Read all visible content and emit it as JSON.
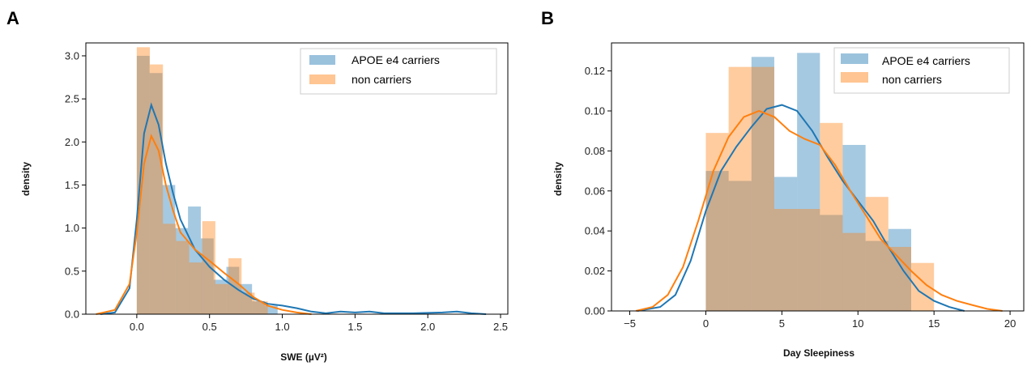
{
  "colors": {
    "carriers": "#1f77b4",
    "non_carriers": "#ff7f0e"
  },
  "chart_data": [
    {
      "panel_label": "A",
      "type": "histogram-kde",
      "xlabel": "SWE (µV²)",
      "ylabel": "density",
      "xlim": [
        -0.35,
        2.55
      ],
      "ylim": [
        0,
        3.15
      ],
      "xticks": [
        {
          "v": 0,
          "label": "0.0"
        },
        {
          "v": 0.5,
          "label": "0.5"
        },
        {
          "v": 1,
          "label": "1.0"
        },
        {
          "v": 1.5,
          "label": "1.5"
        },
        {
          "v": 2,
          "label": "2.0"
        },
        {
          "v": 2.5,
          "label": "2.5"
        }
      ],
      "yticks": [
        {
          "v": 0,
          "label": "0.0"
        },
        {
          "v": 0.5,
          "label": "0.5"
        },
        {
          "v": 1,
          "label": "1.0"
        },
        {
          "v": 1.5,
          "label": "1.5"
        },
        {
          "v": 2,
          "label": "2.0"
        },
        {
          "v": 2.5,
          "label": "2.5"
        },
        {
          "v": 3,
          "label": "3.0"
        }
      ],
      "legend_position": "top-right",
      "legend": [
        "APOE e4 carriers",
        "non carriers"
      ],
      "series": [
        {
          "name": "APOE e4 carriers",
          "color": "#1f77b4",
          "bin_edges": [
            0,
            0.088,
            0.176,
            0.264,
            0.352,
            0.44,
            0.528,
            0.616,
            0.704,
            0.792,
            0.88,
            0.968
          ],
          "bin_heights": [
            3.0,
            2.8,
            1.5,
            1.0,
            1.25,
            0.88,
            0.4,
            0.55,
            0.35,
            0.15,
            0.1
          ],
          "kde": [
            [
              -0.25,
              0
            ],
            [
              -0.15,
              0.02
            ],
            [
              -0.05,
              0.3
            ],
            [
              0,
              1.1
            ],
            [
              0.05,
              2.1
            ],
            [
              0.1,
              2.43
            ],
            [
              0.15,
              2.2
            ],
            [
              0.2,
              1.75
            ],
            [
              0.25,
              1.4
            ],
            [
              0.3,
              1.1
            ],
            [
              0.4,
              0.75
            ],
            [
              0.5,
              0.55
            ],
            [
              0.6,
              0.4
            ],
            [
              0.7,
              0.28
            ],
            [
              0.8,
              0.18
            ],
            [
              0.9,
              0.12
            ],
            [
              1.0,
              0.1
            ],
            [
              1.1,
              0.07
            ],
            [
              1.2,
              0.03
            ],
            [
              1.3,
              0.01
            ],
            [
              1.4,
              0.03
            ],
            [
              1.5,
              0.02
            ],
            [
              1.6,
              0.03
            ],
            [
              1.7,
              0.01
            ],
            [
              1.9,
              0.01
            ],
            [
              2.1,
              0.02
            ],
            [
              2.2,
              0.03
            ],
            [
              2.3,
              0.01
            ],
            [
              2.4,
              0
            ]
          ]
        },
        {
          "name": "non carriers",
          "color": "#ff7f0e",
          "bin_edges": [
            0,
            0.09,
            0.18,
            0.27,
            0.36,
            0.45,
            0.54,
            0.63,
            0.72,
            0.81,
            0.9
          ],
          "bin_heights": [
            3.1,
            2.9,
            1.05,
            0.85,
            0.6,
            1.08,
            0.35,
            0.65,
            0.25,
            0.15
          ],
          "kde": [
            [
              -0.28,
              0
            ],
            [
              -0.15,
              0.05
            ],
            [
              -0.05,
              0.35
            ],
            [
              0,
              0.95
            ],
            [
              0.05,
              1.75
            ],
            [
              0.1,
              2.07
            ],
            [
              0.15,
              1.9
            ],
            [
              0.2,
              1.5
            ],
            [
              0.25,
              1.2
            ],
            [
              0.3,
              0.95
            ],
            [
              0.4,
              0.75
            ],
            [
              0.5,
              0.62
            ],
            [
              0.6,
              0.48
            ],
            [
              0.7,
              0.35
            ],
            [
              0.8,
              0.2
            ],
            [
              0.9,
              0.1
            ],
            [
              1.0,
              0.05
            ],
            [
              1.1,
              0.02
            ],
            [
              1.2,
              0
            ]
          ]
        }
      ]
    },
    {
      "panel_label": "B",
      "type": "histogram-kde",
      "xlabel": "Day Sleepiness",
      "ylabel": "density",
      "xlim": [
        -6.2,
        20.9
      ],
      "ylim": [
        0,
        0.134
      ],
      "xticks": [
        {
          "v": -5,
          "label": "−5"
        },
        {
          "v": 0,
          "label": "0"
        },
        {
          "v": 5,
          "label": "5"
        },
        {
          "v": 10,
          "label": "10"
        },
        {
          "v": 15,
          "label": "15"
        },
        {
          "v": 20,
          "label": "20"
        }
      ],
      "yticks": [
        {
          "v": 0,
          "label": "0.00"
        },
        {
          "v": 0.02,
          "label": "0.02"
        },
        {
          "v": 0.04,
          "label": "0.04"
        },
        {
          "v": 0.06,
          "label": "0.06"
        },
        {
          "v": 0.08,
          "label": "0.08"
        },
        {
          "v": 0.1,
          "label": "0.10"
        },
        {
          "v": 0.12,
          "label": "0.12"
        }
      ],
      "legend_position": "top-right",
      "legend": [
        "APOE e4 carriers",
        "non carriers"
      ],
      "series": [
        {
          "name": "APOE e4 carriers",
          "color": "#1f77b4",
          "bin_edges": [
            0,
            1.5,
            3,
            4.5,
            6,
            7.5,
            9,
            10.5,
            12,
            13.5
          ],
          "bin_heights": [
            0.07,
            0.065,
            0.127,
            0.067,
            0.129,
            0.048,
            0.083,
            0.035,
            0.041
          ],
          "kde": [
            [
              -4.5,
              0
            ],
            [
              -3,
              0.002
            ],
            [
              -2,
              0.008
            ],
            [
              -1,
              0.025
            ],
            [
              0,
              0.05
            ],
            [
              1,
              0.07
            ],
            [
              2,
              0.082
            ],
            [
              3,
              0.092
            ],
            [
              4,
              0.101
            ],
            [
              5,
              0.103
            ],
            [
              6,
              0.1
            ],
            [
              7,
              0.09
            ],
            [
              8,
              0.077
            ],
            [
              9,
              0.065
            ],
            [
              10,
              0.055
            ],
            [
              11,
              0.045
            ],
            [
              12,
              0.032
            ],
            [
              13,
              0.02
            ],
            [
              14,
              0.01
            ],
            [
              15,
              0.005
            ],
            [
              16,
              0.002
            ],
            [
              17,
              0
            ]
          ]
        },
        {
          "name": "non carriers",
          "color": "#ff7f0e",
          "bin_edges": [
            0,
            1.5,
            3,
            4.5,
            6,
            7.5,
            9,
            10.5,
            12,
            13.5,
            15
          ],
          "bin_heights": [
            0.089,
            0.122,
            0.122,
            0.051,
            0.051,
            0.094,
            0.039,
            0.057,
            0.032,
            0.024
          ],
          "kde": [
            [
              -4.6,
              0
            ],
            [
              -3.5,
              0.002
            ],
            [
              -2.5,
              0.008
            ],
            [
              -1.5,
              0.022
            ],
            [
              -0.5,
              0.045
            ],
            [
              0.5,
              0.07
            ],
            [
              1.5,
              0.087
            ],
            [
              2.5,
              0.097
            ],
            [
              3.5,
              0.1
            ],
            [
              4.5,
              0.097
            ],
            [
              5.5,
              0.09
            ],
            [
              6.5,
              0.086
            ],
            [
              7.5,
              0.083
            ],
            [
              8.5,
              0.073
            ],
            [
              9.5,
              0.06
            ],
            [
              10.5,
              0.048
            ],
            [
              11.5,
              0.036
            ],
            [
              12.5,
              0.028
            ],
            [
              13.5,
              0.02
            ],
            [
              14.5,
              0.013
            ],
            [
              15.5,
              0.008
            ],
            [
              16.5,
              0.005
            ],
            [
              17.5,
              0.003
            ],
            [
              18.5,
              0.001
            ],
            [
              19.5,
              0
            ]
          ]
        }
      ]
    }
  ]
}
